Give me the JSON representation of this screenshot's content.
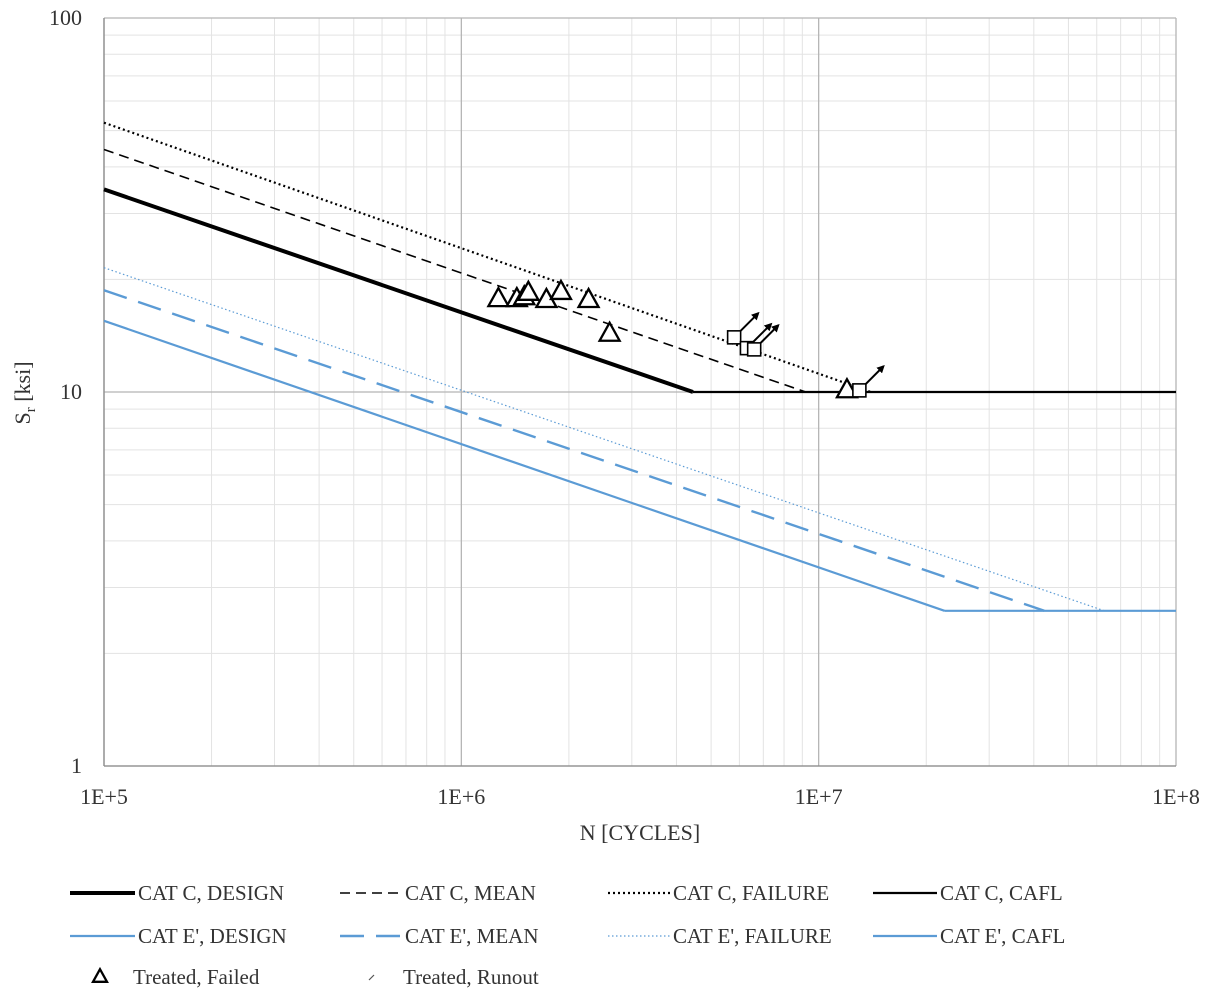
{
  "chart_data": {
    "type": "line",
    "x_scale": "log",
    "y_scale": "log",
    "xlim": [
      100000,
      100000000
    ],
    "ylim": [
      1,
      100
    ],
    "xlabel": "N [CYCLES]",
    "ylabel_main": "S",
    "ylabel_sub": "r",
    "ylabel_unit": " [ksi]",
    "x_ticks": [
      {
        "value": 100000,
        "label": "1E+5"
      },
      {
        "value": 1000000,
        "label": "1E+6"
      },
      {
        "value": 10000000,
        "label": "1E+7"
      },
      {
        "value": 100000000,
        "label": "1E+8"
      }
    ],
    "y_ticks": [
      {
        "value": 1,
        "label": "1"
      },
      {
        "value": 10,
        "label": "10"
      },
      {
        "value": 100,
        "label": "100"
      }
    ],
    "grid": true,
    "legend_position": "bottom",
    "series": [
      {
        "name": "CAT C, DESIGN",
        "color": "#000000",
        "style": "solid-thick",
        "points": [
          [
            100000,
            34.8
          ],
          [
            4450000,
            10
          ]
        ]
      },
      {
        "name": "CAT C, MEAN",
        "color": "#000000",
        "style": "dashed",
        "points": [
          [
            100000,
            44.5
          ],
          [
            9200000,
            10
          ]
        ]
      },
      {
        "name": "CAT C, FAILURE",
        "color": "#000000",
        "style": "dotted",
        "points": [
          [
            100000,
            52.5
          ],
          [
            14000000,
            10
          ]
        ]
      },
      {
        "name": "CAT C, CAFL",
        "color": "#000000",
        "style": "solid",
        "points": [
          [
            4450000,
            10
          ],
          [
            100000000,
            10
          ]
        ]
      },
      {
        "name": "CAT E', DESIGN",
        "color": "#5b9bd5",
        "style": "solid",
        "points": [
          [
            100000,
            15.5
          ],
          [
            22500000,
            2.6
          ]
        ]
      },
      {
        "name": "CAT E', MEAN",
        "color": "#5b9bd5",
        "style": "long-dashed",
        "points": [
          [
            100000,
            18.7
          ],
          [
            42800000,
            2.6
          ]
        ]
      },
      {
        "name": "CAT E', FAILURE",
        "color": "#5b9bd5",
        "style": "dotted-thin",
        "points": [
          [
            100000,
            21.5
          ],
          [
            63000000,
            2.6
          ]
        ]
      },
      {
        "name": "CAT E', CAFL",
        "color": "#5b9bd5",
        "style": "solid",
        "points": [
          [
            22500000,
            2.6
          ],
          [
            100000000,
            2.6
          ]
        ]
      },
      {
        "name": "Treated, Failed",
        "color": "#000000",
        "style": "triangle-marker",
        "points": [
          [
            1270000,
            17.7
          ],
          [
            1430000,
            17.7
          ],
          [
            1500000,
            17.9
          ],
          [
            1540000,
            18.4
          ],
          [
            1730000,
            17.6
          ],
          [
            1900000,
            18.5
          ],
          [
            2270000,
            17.6
          ],
          [
            2600000,
            14.3
          ],
          [
            12000000,
            10.1
          ]
        ]
      },
      {
        "name": "Treated, Runout",
        "color": "#000000",
        "style": "square-arrow-marker",
        "points": [
          [
            5800000,
            14.0
          ],
          [
            6300000,
            13.1
          ],
          [
            6600000,
            13.0
          ],
          [
            13000000,
            10.1
          ]
        ]
      }
    ]
  }
}
